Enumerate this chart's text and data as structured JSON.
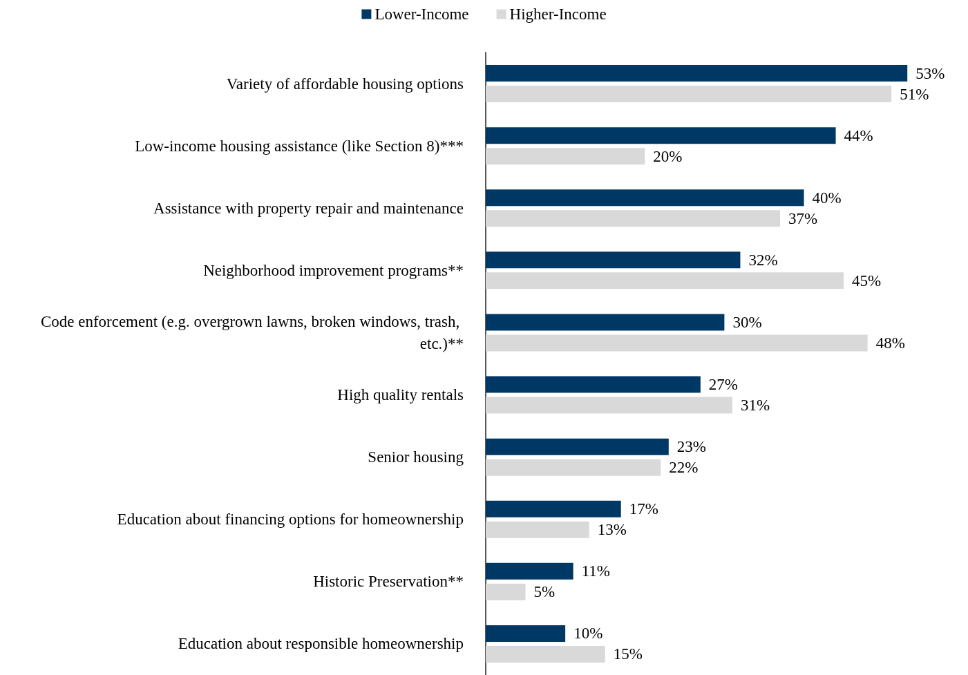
{
  "chart_data": {
    "type": "bar",
    "orientation": "horizontal",
    "legend": "top",
    "categories": [
      "Variety of affordable housing options",
      "Low-income housing assistance (like Section 8)***",
      "Assistance with property repair and maintenance",
      "Neighborhood improvement programs**",
      "Code enforcement (e.g. overgrown lawns, broken windows, trash, etc.)**",
      "High quality rentals",
      "Senior housing",
      "Education about financing options for homeownership",
      "Historic Preservation**",
      "Education about responsible homeownership"
    ],
    "series": [
      {
        "name": "Lower-Income",
        "color": "#003865",
        "values": [
          53,
          44,
          40,
          32,
          30,
          27,
          23,
          17,
          11,
          10
        ],
        "value_labels": [
          "53%",
          "44%",
          "40%",
          "32%",
          "30%",
          "27%",
          "23%",
          "17%",
          "11%",
          "10%"
        ]
      },
      {
        "name": "Higher-Income",
        "color": "#d9d9d9",
        "values": [
          51,
          20,
          37,
          45,
          48,
          31,
          22,
          13,
          5,
          15
        ],
        "value_labels": [
          "51%",
          "20%",
          "37%",
          "45%",
          "48%",
          "31%",
          "22%",
          "13%",
          "5%",
          "15%"
        ]
      }
    ]
  }
}
